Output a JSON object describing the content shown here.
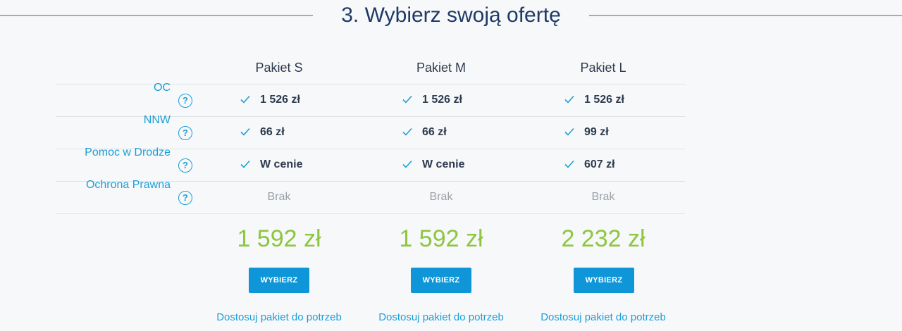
{
  "header": {
    "title": "3. Wybierz swoją ofertę"
  },
  "plans": [
    {
      "name": "Pakiet S",
      "price": "1 592 zł",
      "button_label": "WYBIERZ",
      "customize_label": "Dostosuj pakiet do potrzeb"
    },
    {
      "name": "Pakiet M",
      "price": "1 592 zł",
      "button_label": "WYBIERZ",
      "customize_label": "Dostosuj pakiet do potrzeb"
    },
    {
      "name": "Pakiet L",
      "price": "2 232 zł",
      "button_label": "WYBIERZ",
      "customize_label": "Dostosuj pakiet do potrzeb"
    }
  ],
  "coverage": [
    {
      "label": "OC",
      "help_icon": "?",
      "values": [
        {
          "text": "1 526 zł",
          "included": true
        },
        {
          "text": "1 526 zł",
          "included": true
        },
        {
          "text": "1 526 zł",
          "included": true
        }
      ]
    },
    {
      "label": "NNW",
      "help_icon": "?",
      "values": [
        {
          "text": "66 zł",
          "included": true
        },
        {
          "text": "66 zł",
          "included": true
        },
        {
          "text": "99 zł",
          "included": true
        }
      ]
    },
    {
      "label": "Pomoc w Drodze",
      "help_icon": "?",
      "values": [
        {
          "text": "W cenie",
          "included": true
        },
        {
          "text": "W cenie",
          "included": true
        },
        {
          "text": "607 zł",
          "included": true
        }
      ]
    },
    {
      "label": "Ochrona Prawna",
      "help_icon": "?",
      "values": [
        {
          "text": "Brak",
          "included": false
        },
        {
          "text": "Brak",
          "included": false
        },
        {
          "text": "Brak",
          "included": false
        }
      ]
    }
  ],
  "colors": {
    "title": "#1f3a66",
    "accent": "#1a9fd9",
    "price": "#8dc63f",
    "button": "#0f96d8",
    "muted": "#9ba1a8"
  },
  "icons": {
    "check": "check-icon",
    "help": "question-circle-icon"
  }
}
